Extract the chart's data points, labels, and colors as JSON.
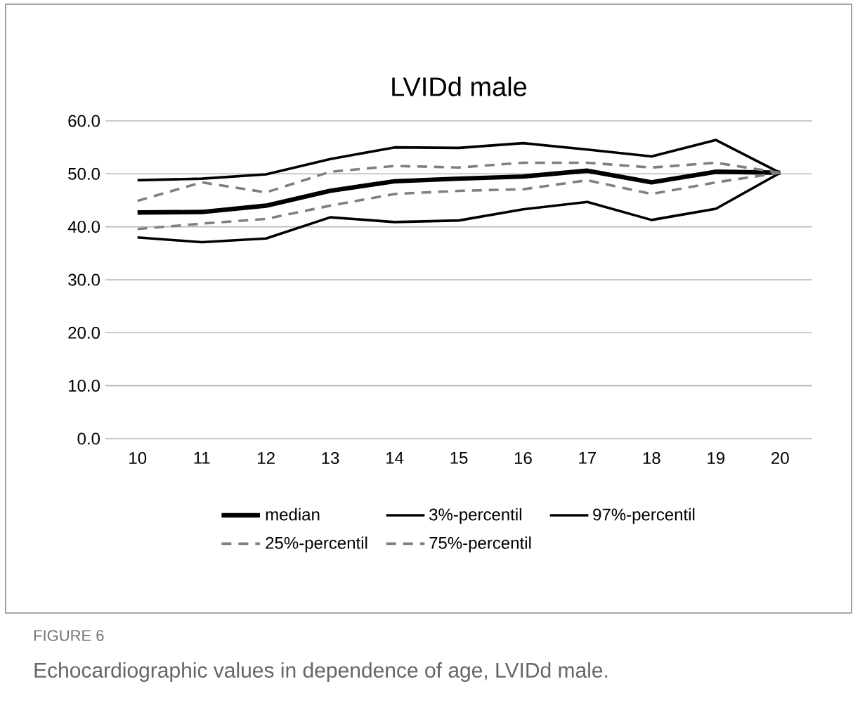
{
  "chart_data": {
    "type": "line",
    "title": "LVIDd male",
    "categories": [
      "10",
      "11",
      "12",
      "13",
      "14",
      "15",
      "16",
      "17",
      "18",
      "19",
      "20"
    ],
    "series": [
      {
        "name": "median",
        "color": "#000000",
        "line_style": "solid",
        "values": [
          42.7,
          42.8,
          44.0,
          46.8,
          48.6,
          49.1,
          49.5,
          50.6,
          48.4,
          50.4,
          50.2
        ]
      },
      {
        "name": "3%-percentil",
        "color": "#000000",
        "line_style": "solid",
        "values": [
          38.0,
          37.1,
          37.8,
          41.8,
          40.9,
          41.2,
          43.3,
          44.7,
          41.3,
          43.4,
          50.2
        ]
      },
      {
        "name": "97%-percentil",
        "color": "#000000",
        "line_style": "solid",
        "values": [
          48.8,
          49.1,
          49.9,
          52.8,
          55.0,
          54.9,
          55.8,
          54.6,
          53.3,
          56.4,
          50.2
        ]
      },
      {
        "name": "25%-percentil",
        "color": "#808080",
        "line_style": "dashed",
        "values": [
          39.6,
          40.6,
          41.5,
          44.0,
          46.2,
          46.8,
          47.1,
          48.8,
          46.2,
          48.4,
          50.2
        ]
      },
      {
        "name": "75%-percentil",
        "color": "#808080",
        "line_style": "dashed",
        "values": [
          44.9,
          48.4,
          46.5,
          50.4,
          51.5,
          51.2,
          52.1,
          52.1,
          51.2,
          52.1,
          50.2
        ]
      }
    ],
    "ylim": [
      0,
      60
    ],
    "yticks": [
      {
        "value": 0,
        "label": "0.0"
      },
      {
        "value": 10,
        "label": "10.0"
      },
      {
        "value": 20,
        "label": "20.0"
      },
      {
        "value": 30,
        "label": "30.0"
      },
      {
        "value": 40,
        "label": "40.0"
      },
      {
        "value": 50,
        "label": "50.0"
      },
      {
        "value": 60,
        "label": "60.0"
      }
    ],
    "grid": "y",
    "legend": "bottom",
    "marker": "none",
    "annotations": [
      "FIGURE 6",
      "Echocardiographic values in dependence of age, LVIDd male."
    ]
  }
}
